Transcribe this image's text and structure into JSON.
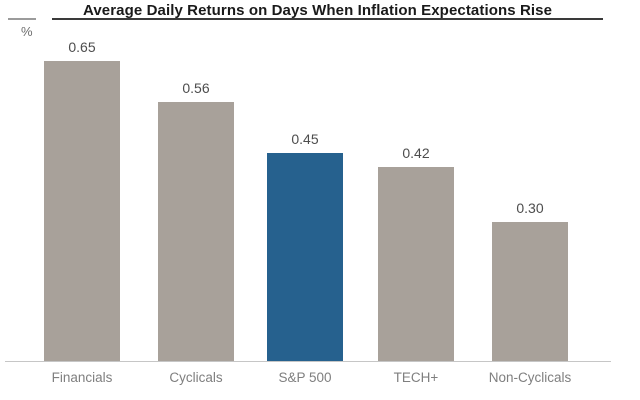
{
  "chart_data": {
    "type": "bar",
    "title": "Average Daily Returns on Days When Inflation Expectations Rise",
    "unit_label": "%",
    "categories": [
      "Financials",
      "Cyclicals",
      "S&P 500",
      "TECH+",
      "Non-Cyclicals"
    ],
    "values": [
      0.65,
      0.56,
      0.45,
      0.42,
      0.3
    ],
    "value_labels": [
      "0.65",
      "0.56",
      "0.45",
      "0.42",
      "0.30"
    ],
    "highlighted_category": "S&P 500",
    "highlight_index": 2,
    "ylim": [
      0,
      0.75
    ],
    "grid": false,
    "legend": false,
    "colors": {
      "bar_default": "#a8a19a",
      "bar_highlight": "#26618e",
      "value_label": "#4d4d4d",
      "category_label": "#7f7f7f",
      "axis_line": "#c6c6c6",
      "title": "#1a1a1a",
      "background": "#ffffff"
    }
  }
}
